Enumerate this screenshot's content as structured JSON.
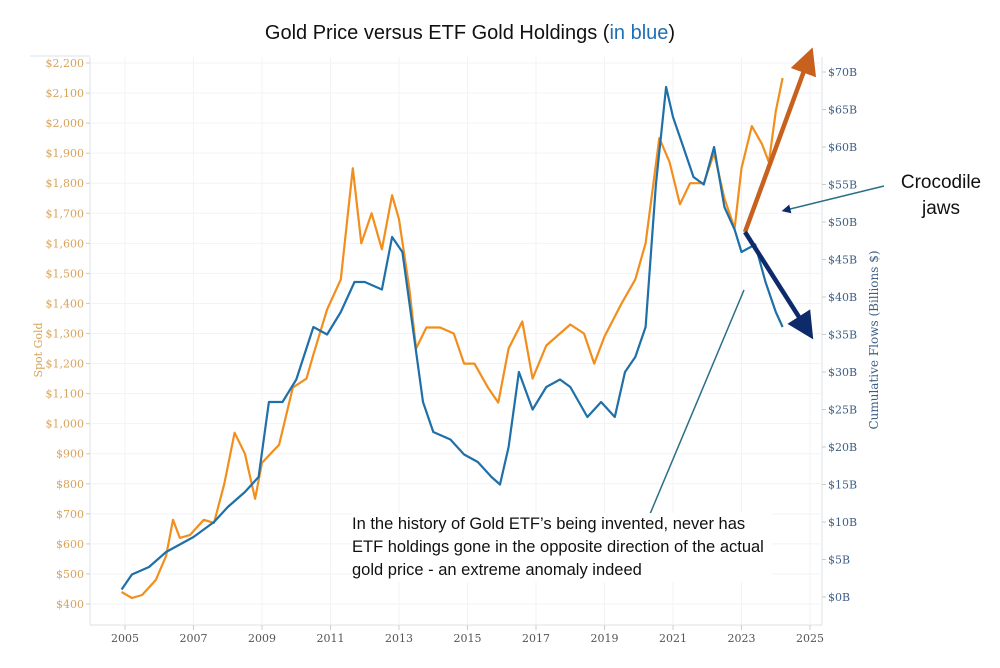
{
  "chart_data": {
    "type": "line",
    "title_prefix": "Gold Price versus ETF Gold Holdings (",
    "title_highlight": "in blue",
    "title_suffix": ")",
    "ylabel_left": "Spot Gold",
    "ylabel_right": "Cumulative Flows (Billions $)",
    "xlim": [
      2004.1,
      2025.4
    ],
    "ylim_left": [
      400,
      2200
    ],
    "ylim_right": [
      0,
      70
    ],
    "x_ticks": [
      "2005",
      "2007",
      "2009",
      "2011",
      "2013",
      "2015",
      "2017",
      "2019",
      "2021",
      "2023",
      "2025"
    ],
    "y_ticks_left": [
      "$400",
      "$500",
      "$600",
      "$700",
      "$800",
      "$900",
      "$1,000",
      "$1,100",
      "$1,200",
      "$1,300",
      "$1,400",
      "$1,500",
      "$1,600",
      "$1,700",
      "$1,800",
      "$1,900",
      "$2,000",
      "$2,100",
      "$2,200"
    ],
    "y_ticks_right": [
      "$0B",
      "$5B",
      "$10B",
      "$15B",
      "$20B",
      "$25B",
      "$30B",
      "$35B",
      "$40B",
      "$45B",
      "$50B",
      "$55B",
      "$60B",
      "$65B",
      "$70B"
    ],
    "grid": true,
    "colors": {
      "gold": "#f28e1c",
      "etf": "#1f6fa8",
      "up_arrow": "#c8601e",
      "down_arrow": "#0d2a6b",
      "callout": "#2a6f86"
    },
    "series": [
      {
        "name": "Spot Gold",
        "axis": "left",
        "x": [
          2004.9,
          2005.2,
          2005.5,
          2005.9,
          2006.2,
          2006.4,
          2006.6,
          2006.9,
          2007.3,
          2007.6,
          2007.9,
          2008.2,
          2008.5,
          2008.8,
          2009.0,
          2009.5,
          2009.9,
          2010.3,
          2010.5,
          2010.9,
          2011.3,
          2011.65,
          2011.9,
          2012.2,
          2012.5,
          2012.8,
          2013.0,
          2013.3,
          2013.5,
          2013.8,
          2014.2,
          2014.6,
          2014.9,
          2015.2,
          2015.6,
          2015.9,
          2016.2,
          2016.6,
          2016.9,
          2017.3,
          2017.7,
          2018.0,
          2018.4,
          2018.7,
          2019.0,
          2019.5,
          2019.9,
          2020.2,
          2020.6,
          2020.9,
          2021.2,
          2021.5,
          2021.9,
          2022.2,
          2022.5,
          2022.8,
          2023.0,
          2023.3,
          2023.6,
          2023.8,
          2024.0,
          2024.2
        ],
        "values": [
          440,
          420,
          430,
          480,
          560,
          680,
          620,
          630,
          680,
          670,
          800,
          970,
          900,
          750,
          870,
          930,
          1120,
          1150,
          1230,
          1380,
          1480,
          1850,
          1600,
          1700,
          1580,
          1760,
          1680,
          1450,
          1250,
          1320,
          1320,
          1300,
          1200,
          1200,
          1120,
          1070,
          1250,
          1340,
          1150,
          1260,
          1300,
          1330,
          1300,
          1200,
          1290,
          1400,
          1480,
          1600,
          1950,
          1870,
          1730,
          1800,
          1800,
          1900,
          1750,
          1650,
          1850,
          1990,
          1930,
          1870,
          2040,
          2150
        ]
      },
      {
        "name": "ETF Gold Holdings",
        "axis": "right",
        "x": [
          2004.9,
          2005.2,
          2005.7,
          2006.2,
          2006.6,
          2007.0,
          2007.6,
          2008.0,
          2008.5,
          2008.9,
          2009.2,
          2009.6,
          2010.0,
          2010.5,
          2010.9,
          2011.3,
          2011.7,
          2012.0,
          2012.5,
          2012.8,
          2013.1,
          2013.4,
          2013.7,
          2014.0,
          2014.5,
          2014.9,
          2015.3,
          2015.7,
          2015.95,
          2016.2,
          2016.5,
          2016.9,
          2017.3,
          2017.7,
          2018.0,
          2018.5,
          2018.9,
          2019.3,
          2019.6,
          2019.9,
          2020.2,
          2020.5,
          2020.8,
          2021.0,
          2021.3,
          2021.6,
          2021.9,
          2022.2,
          2022.5,
          2022.8,
          2023.0,
          2023.4,
          2023.7,
          2024.0,
          2024.2
        ],
        "values": [
          1,
          3,
          4,
          6,
          7,
          8,
          10,
          12,
          14,
          16,
          26,
          26,
          29,
          36,
          35,
          38,
          42,
          42,
          41,
          48,
          46,
          36,
          26,
          22,
          21,
          19,
          18,
          16,
          15,
          20,
          30,
          25,
          28,
          29,
          28,
          24,
          26,
          24,
          30,
          32,
          36,
          55,
          68,
          64,
          60,
          56,
          55,
          60,
          52,
          49,
          46,
          47,
          42,
          38,
          36
        ]
      }
    ],
    "annotations": {
      "crocodile": "Crocodile jaws",
      "note": "In the history of Gold ETF’s being invented, never has ETF holdings gone in the opposite direction of the actual gold price - an extreme anomaly indeed"
    }
  }
}
